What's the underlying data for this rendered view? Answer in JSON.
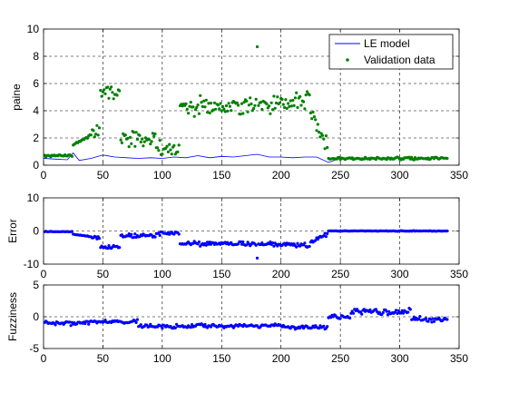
{
  "figure": {
    "background": "#ffffff"
  },
  "colors": {
    "model": "#0000ff",
    "validation": "#008000",
    "error": "#0000ff",
    "fuzziness": "#0000ff",
    "grid": "#000000"
  },
  "chart_data": [
    {
      "type": "line",
      "ylabel": "paine",
      "xlim": [
        0,
        350
      ],
      "ylim": [
        0,
        10
      ],
      "xticks": [
        0,
        50,
        100,
        150,
        200,
        250,
        300,
        350
      ],
      "yticks": [
        0,
        2,
        4,
        6,
        8,
        10
      ],
      "grid": true,
      "legend": "top-right",
      "series": [
        {
          "name": "LE model",
          "style": "line",
          "color": "#0000ff",
          "x": [
            0,
            10,
            20,
            25,
            30,
            40,
            50,
            60,
            70,
            80,
            90,
            100,
            110,
            120,
            130,
            140,
            150,
            160,
            170,
            180,
            190,
            200,
            210,
            220,
            230,
            240,
            250,
            260,
            280,
            300,
            320,
            340
          ],
          "y": [
            0.5,
            0.45,
            0.4,
            0.9,
            0.35,
            0.5,
            0.75,
            0.6,
            0.55,
            0.5,
            0.55,
            0.5,
            0.6,
            0.55,
            0.7,
            0.55,
            0.65,
            0.6,
            0.7,
            0.8,
            0.6,
            0.6,
            0.55,
            0.6,
            0.6,
            0.2,
            0.5,
            0.55,
            0.5,
            0.55,
            0.5,
            0.5
          ]
        },
        {
          "name": "Validation data",
          "style": "markers",
          "color": "#008000",
          "x": [],
          "y": []
        }
      ]
    },
    {
      "type": "scatter",
      "ylabel": "Error",
      "xlim": [
        0,
        350
      ],
      "ylim": [
        -10,
        10
      ],
      "xticks": [
        0,
        50,
        100,
        150,
        200,
        250,
        300,
        350
      ],
      "yticks": [
        -10,
        0,
        10
      ],
      "grid": true,
      "series": [
        {
          "color": "#0000ff",
          "x": [],
          "y": []
        }
      ]
    },
    {
      "type": "scatter",
      "ylabel": "Fuzziness",
      "xlim": [
        0,
        350
      ],
      "ylim": [
        -5,
        5
      ],
      "xticks": [
        0,
        50,
        100,
        150,
        200,
        250,
        300,
        350
      ],
      "yticks": [
        -5,
        0,
        5
      ],
      "grid": true,
      "series": [
        {
          "color": "#0000ff",
          "x": [],
          "y": []
        }
      ]
    }
  ]
}
